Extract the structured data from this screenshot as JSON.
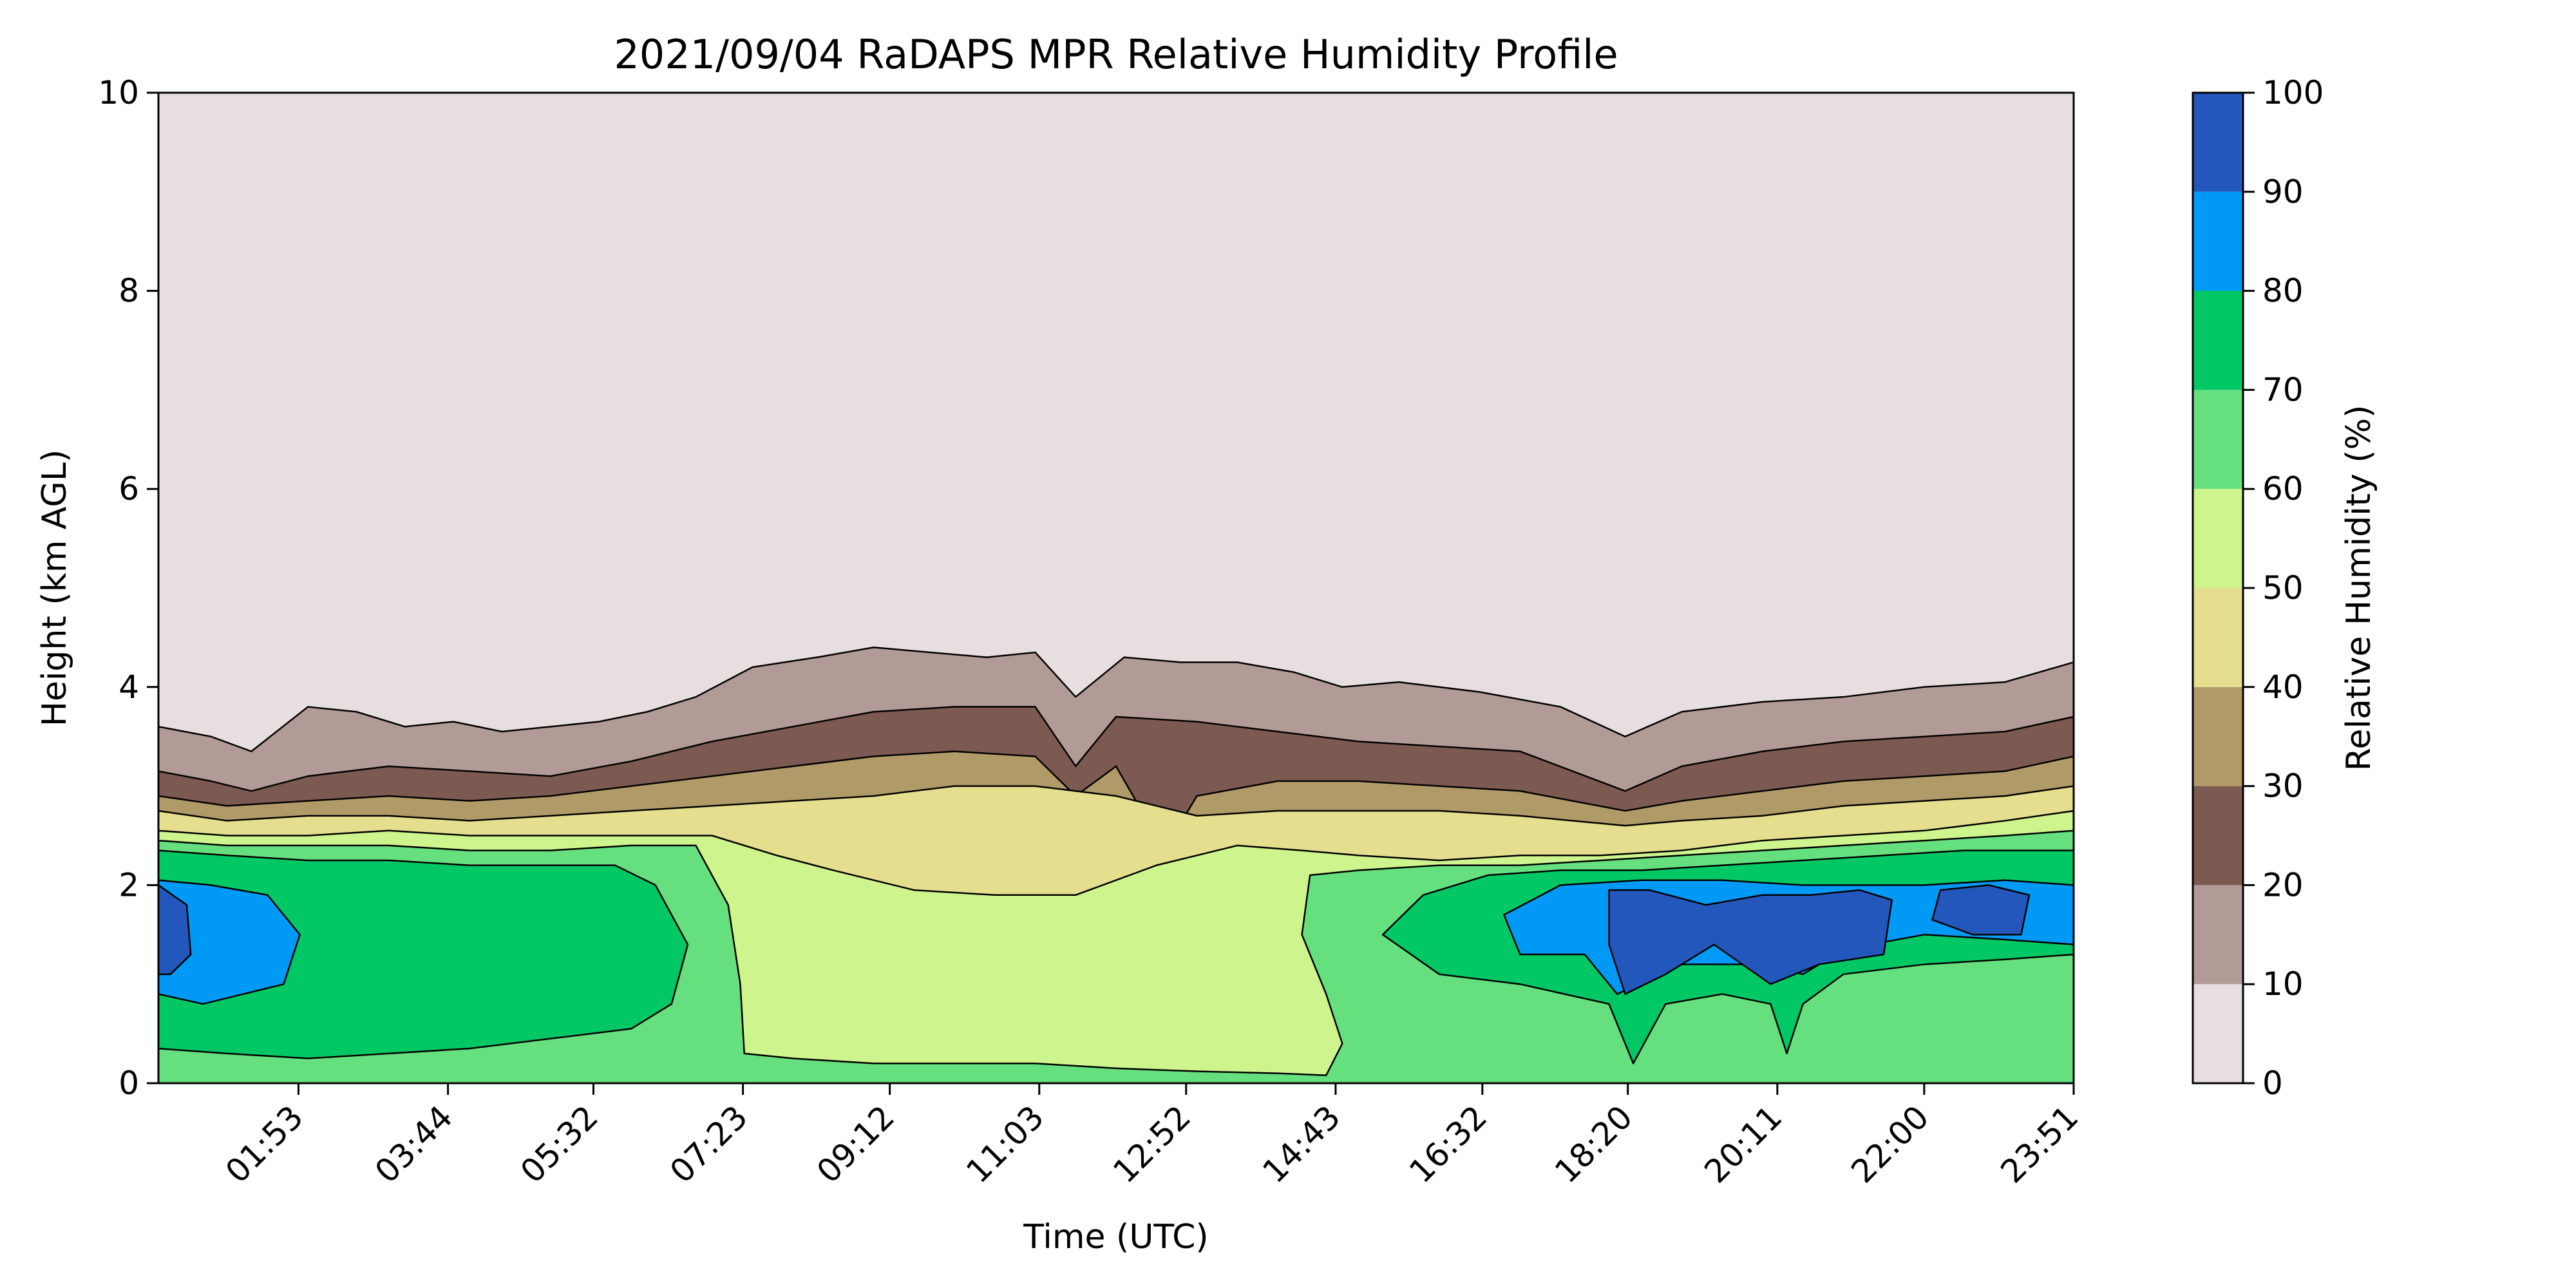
{
  "chart_data": {
    "type": "heatmap",
    "subtype": "filled-contour",
    "title": "2021/09/04 RaDAPS MPR Relative Humidity Profile",
    "xlabel": "Time (UTC)",
    "ylabel": "Height (km AGL)",
    "colorbar_label": "Relative Humidity (%)",
    "x_tick_labels": [
      "01:53",
      "03:44",
      "05:32",
      "07:23",
      "09:12",
      "11:03",
      "12:52",
      "14:43",
      "16:32",
      "18:20",
      "20:11",
      "22:00",
      "23:51"
    ],
    "x_ticks_hours": [
      1.883,
      3.733,
      5.533,
      7.383,
      9.2,
      11.05,
      12.867,
      14.717,
      16.533,
      18.333,
      20.183,
      22.0,
      23.85
    ],
    "x_range_hours": [
      0.15,
      23.85
    ],
    "y_ticks": [
      0,
      2,
      4,
      6,
      8,
      10
    ],
    "ylim": [
      0,
      10
    ],
    "levels": [
      0,
      10,
      20,
      30,
      40,
      50,
      60,
      70,
      80,
      90,
      100
    ],
    "level_colors": [
      "#e7dfdf",
      "#b29b96",
      "#7c5951",
      "#b09a68",
      "#e6de8f",
      "#cdf48d",
      "#66df7e",
      "#01c864",
      "#0099f5",
      "#2457bb"
    ],
    "grid": false,
    "contours": {
      "c10": [
        [
          0.15,
          3.6
        ],
        [
          0.8,
          3.5
        ],
        [
          1.3,
          3.35
        ],
        [
          2.0,
          3.8
        ],
        [
          2.6,
          3.75
        ],
        [
          3.2,
          3.6
        ],
        [
          3.8,
          3.65
        ],
        [
          4.4,
          3.55
        ],
        [
          5.0,
          3.6
        ],
        [
          5.6,
          3.65
        ],
        [
          6.2,
          3.75
        ],
        [
          6.8,
          3.9
        ],
        [
          7.5,
          4.2
        ],
        [
          8.3,
          4.3
        ],
        [
          9.0,
          4.4
        ],
        [
          9.7,
          4.35
        ],
        [
          10.4,
          4.3
        ],
        [
          11.0,
          4.35
        ],
        [
          11.5,
          3.9
        ],
        [
          12.1,
          4.3
        ],
        [
          12.8,
          4.25
        ],
        [
          13.5,
          4.25
        ],
        [
          14.2,
          4.15
        ],
        [
          14.8,
          4.0
        ],
        [
          15.5,
          4.05
        ],
        [
          16.5,
          3.95
        ],
        [
          17.5,
          3.8
        ],
        [
          18.3,
          3.5
        ],
        [
          19.0,
          3.75
        ],
        [
          20.0,
          3.85
        ],
        [
          21.0,
          3.9
        ],
        [
          22.0,
          4.0
        ],
        [
          23.0,
          4.05
        ],
        [
          23.85,
          4.25
        ]
      ],
      "c20": [
        [
          0.15,
          3.15
        ],
        [
          0.8,
          3.05
        ],
        [
          1.3,
          2.95
        ],
        [
          2.0,
          3.1
        ],
        [
          3.0,
          3.2
        ],
        [
          4.0,
          3.15
        ],
        [
          5.0,
          3.1
        ],
        [
          6.0,
          3.25
        ],
        [
          7.0,
          3.45
        ],
        [
          8.0,
          3.6
        ],
        [
          9.0,
          3.75
        ],
        [
          10.0,
          3.8
        ],
        [
          11.0,
          3.8
        ],
        [
          11.5,
          3.2
        ],
        [
          12.0,
          3.7
        ],
        [
          13.0,
          3.65
        ],
        [
          14.0,
          3.55
        ],
        [
          15.0,
          3.45
        ],
        [
          16.0,
          3.4
        ],
        [
          17.0,
          3.35
        ],
        [
          18.3,
          2.95
        ],
        [
          19.0,
          3.2
        ],
        [
          20.0,
          3.35
        ],
        [
          21.0,
          3.45
        ],
        [
          22.0,
          3.5
        ],
        [
          23.0,
          3.55
        ],
        [
          23.85,
          3.7
        ]
      ],
      "c30": [
        [
          0.15,
          2.9
        ],
        [
          1.0,
          2.8
        ],
        [
          2.0,
          2.85
        ],
        [
          3.0,
          2.9
        ],
        [
          4.0,
          2.85
        ],
        [
          5.0,
          2.9
        ],
        [
          6.0,
          3.0
        ],
        [
          7.0,
          3.1
        ],
        [
          8.0,
          3.2
        ],
        [
          9.0,
          3.3
        ],
        [
          10.0,
          3.35
        ],
        [
          11.0,
          3.3
        ],
        [
          11.5,
          2.9
        ],
        [
          12.0,
          3.2
        ],
        [
          12.6,
          2.35
        ],
        [
          13.0,
          2.9
        ],
        [
          14.0,
          3.05
        ],
        [
          15.0,
          3.05
        ],
        [
          16.0,
          3.0
        ],
        [
          17.0,
          2.95
        ],
        [
          18.3,
          2.75
        ],
        [
          19.0,
          2.85
        ],
        [
          20.0,
          2.95
        ],
        [
          21.0,
          3.05
        ],
        [
          22.0,
          3.1
        ],
        [
          23.0,
          3.15
        ],
        [
          23.85,
          3.3
        ]
      ],
      "c40": [
        [
          0.15,
          2.75
        ],
        [
          1.0,
          2.65
        ],
        [
          2.0,
          2.7
        ],
        [
          3.0,
          2.7
        ],
        [
          4.0,
          2.65
        ],
        [
          5.0,
          2.7
        ],
        [
          6.0,
          2.75
        ],
        [
          7.0,
          2.8
        ],
        [
          8.0,
          2.85
        ],
        [
          9.0,
          2.9
        ],
        [
          10.0,
          3.0
        ],
        [
          11.0,
          3.0
        ],
        [
          12.0,
          2.9
        ],
        [
          13.0,
          2.7
        ],
        [
          14.0,
          2.75
        ],
        [
          15.0,
          2.75
        ],
        [
          16.0,
          2.75
        ],
        [
          17.0,
          2.7
        ],
        [
          18.3,
          2.6
        ],
        [
          19.0,
          2.65
        ],
        [
          20.0,
          2.7
        ],
        [
          21.0,
          2.8
        ],
        [
          22.0,
          2.85
        ],
        [
          23.0,
          2.9
        ],
        [
          23.85,
          3.0
        ]
      ],
      "c50": [
        [
          0.15,
          2.55
        ],
        [
          1.0,
          2.5
        ],
        [
          2.0,
          2.5
        ],
        [
          3.0,
          2.55
        ],
        [
          4.0,
          2.5
        ],
        [
          5.0,
          2.5
        ],
        [
          6.0,
          2.5
        ],
        [
          7.0,
          2.5
        ],
        [
          7.4,
          2.4
        ],
        [
          7.8,
          2.3
        ],
        [
          8.5,
          2.15
        ],
        [
          9.5,
          1.95
        ],
        [
          10.5,
          1.9
        ],
        [
          11.5,
          1.9
        ],
        [
          12.5,
          2.2
        ],
        [
          13.5,
          2.4
        ],
        [
          14.3,
          2.35
        ],
        [
          15.0,
          2.3
        ],
        [
          16.0,
          2.25
        ],
        [
          17.0,
          2.3
        ],
        [
          18.0,
          2.3
        ],
        [
          19.0,
          2.35
        ],
        [
          20.0,
          2.45
        ],
        [
          21.0,
          2.5
        ],
        [
          22.0,
          2.55
        ],
        [
          23.0,
          2.65
        ],
        [
          23.85,
          2.75
        ]
      ],
      "c60": [
        [
          0.15,
          2.45
        ],
        [
          1.0,
          2.4
        ],
        [
          2.0,
          2.4
        ],
        [
          3.0,
          2.4
        ],
        [
          4.0,
          2.35
        ],
        [
          5.0,
          2.35
        ],
        [
          6.0,
          2.4
        ],
        [
          6.8,
          2.4
        ],
        [
          7.2,
          1.8
        ],
        [
          7.35,
          1.0
        ],
        [
          7.4,
          0.3
        ],
        [
          8.0,
          0.25
        ],
        [
          9.0,
          0.2
        ],
        [
          10.0,
          0.2
        ],
        [
          11.0,
          0.2
        ],
        [
          12.0,
          0.15
        ],
        [
          13.0,
          0.12
        ],
        [
          14.0,
          0.1
        ],
        [
          14.6,
          0.08
        ],
        [
          14.8,
          0.4
        ],
        [
          14.6,
          0.9
        ],
        [
          14.3,
          1.5
        ],
        [
          14.4,
          2.1
        ],
        [
          15.0,
          2.15
        ],
        [
          16.0,
          2.2
        ],
        [
          17.0,
          2.2
        ],
        [
          18.0,
          2.25
        ],
        [
          19.0,
          2.3
        ],
        [
          20.0,
          2.35
        ],
        [
          21.0,
          2.4
        ],
        [
          22.0,
          2.45
        ],
        [
          23.0,
          2.5
        ],
        [
          23.85,
          2.55
        ]
      ],
      "c70": [
        [
          0.15,
          2.35
        ],
        [
          1.0,
          2.3
        ],
        [
          2.0,
          2.25
        ],
        [
          3.0,
          2.25
        ],
        [
          4.0,
          2.2
        ],
        [
          5.0,
          2.2
        ],
        [
          5.8,
          2.2
        ],
        [
          6.3,
          2.0
        ],
        [
          6.7,
          1.4
        ],
        [
          6.5,
          0.8
        ],
        [
          6.0,
          0.55
        ],
        [
          5.5,
          0.5
        ],
        [
          5.0,
          0.45
        ],
        [
          4.0,
          0.35
        ],
        [
          3.0,
          0.3
        ],
        [
          2.0,
          0.25
        ],
        [
          1.0,
          0.3
        ],
        [
          0.15,
          0.35
        ]
      ],
      "c70b": [
        [
          15.3,
          1.5
        ],
        [
          15.8,
          1.9
        ],
        [
          16.6,
          2.1
        ],
        [
          17.5,
          2.15
        ],
        [
          18.5,
          2.15
        ],
        [
          19.5,
          2.2
        ],
        [
          20.5,
          2.25
        ],
        [
          21.5,
          2.3
        ],
        [
          22.5,
          2.35
        ],
        [
          23.85,
          2.35
        ],
        [
          23.85,
          1.3
        ],
        [
          23.0,
          1.25
        ],
        [
          22.0,
          1.2
        ],
        [
          21.0,
          1.1
        ],
        [
          20.5,
          0.8
        ],
        [
          20.3,
          0.3
        ],
        [
          20.1,
          0.8
        ],
        [
          19.5,
          0.9
        ],
        [
          18.8,
          0.8
        ],
        [
          18.4,
          0.2
        ],
        [
          18.1,
          0.8
        ],
        [
          17.0,
          1.0
        ],
        [
          16.0,
          1.1
        ],
        [
          15.3,
          1.5
        ]
      ],
      "c80": [
        [
          16.8,
          1.7
        ],
        [
          17.5,
          2.0
        ],
        [
          18.5,
          2.05
        ],
        [
          19.5,
          2.05
        ],
        [
          20.5,
          2.0
        ],
        [
          21.3,
          2.0
        ],
        [
          22.0,
          2.0
        ],
        [
          23.0,
          2.05
        ],
        [
          23.85,
          2.0
        ],
        [
          23.85,
          1.4
        ],
        [
          23.0,
          1.45
        ],
        [
          22.0,
          1.5
        ],
        [
          21.0,
          1.35
        ],
        [
          20.5,
          1.1
        ],
        [
          20.0,
          1.2
        ],
        [
          19.0,
          1.2
        ],
        [
          18.2,
          0.9
        ],
        [
          17.8,
          1.3
        ],
        [
          17.0,
          1.3
        ],
        [
          16.8,
          1.7
        ]
      ],
      "c80a": [
        [
          0.15,
          2.05
        ],
        [
          0.8,
          2.0
        ],
        [
          1.5,
          1.9
        ],
        [
          1.9,
          1.5
        ],
        [
          1.7,
          1.0
        ],
        [
          1.2,
          0.9
        ],
        [
          0.7,
          0.8
        ],
        [
          0.15,
          0.9
        ]
      ],
      "c90": [
        [
          18.1,
          1.95
        ],
        [
          18.6,
          1.95
        ],
        [
          19.3,
          1.8
        ],
        [
          20.0,
          1.9
        ],
        [
          20.6,
          1.9
        ],
        [
          21.2,
          1.95
        ],
        [
          21.6,
          1.85
        ],
        [
          21.5,
          1.3
        ],
        [
          20.7,
          1.2
        ],
        [
          20.1,
          1.0
        ],
        [
          19.4,
          1.4
        ],
        [
          18.8,
          1.1
        ],
        [
          18.3,
          0.9
        ],
        [
          18.1,
          1.4
        ]
      ],
      "c90b": [
        [
          22.2,
          1.95
        ],
        [
          22.8,
          2.0
        ],
        [
          23.3,
          1.9
        ],
        [
          23.2,
          1.5
        ],
        [
          22.6,
          1.5
        ],
        [
          22.1,
          1.65
        ]
      ],
      "c100": [
        [
          0.15,
          2.0
        ],
        [
          0.5,
          1.8
        ],
        [
          0.55,
          1.3
        ],
        [
          0.3,
          1.1
        ],
        [
          0.15,
          1.1
        ]
      ]
    }
  }
}
